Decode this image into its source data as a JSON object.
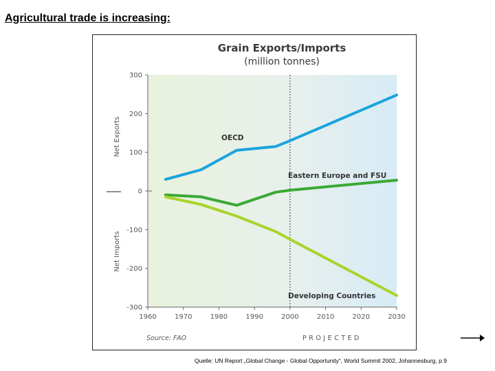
{
  "slide": {
    "title": "Agricultural trade is increasing:",
    "caption": "Quelle: UN Report „Global Change - Global Opportunity“, World Summit 2002, Johannesburg,  p.9"
  },
  "chart_data": {
    "type": "line",
    "title": "Grain Exports/Imports",
    "subtitle": "(million tonnes)",
    "ylabel_top": "Net Exports",
    "ylabel_bottom": "Net Imports",
    "xlim": [
      1960,
      2030
    ],
    "ylim": [
      -300,
      300
    ],
    "x_ticks": [
      "1960",
      "1970",
      "1980",
      "1990",
      "2000",
      "2010",
      "2020",
      "2030"
    ],
    "y_ticks": [
      "300",
      "200",
      "100",
      "0",
      "-100",
      "-200",
      "-300"
    ],
    "projection_start": 2000,
    "source_note": "Source: FAO",
    "projected_label": "PROJECTED",
    "grid": false,
    "series": [
      {
        "name": "OECD",
        "color": "#1aa3dd",
        "points": [
          [
            1965,
            30
          ],
          [
            1975,
            55
          ],
          [
            1985,
            105
          ],
          [
            1996,
            115
          ],
          [
            2000,
            130
          ],
          [
            2030,
            248
          ]
        ]
      },
      {
        "name": "Eastern Europe and FSU",
        "color": "#3aa935",
        "points": [
          [
            1965,
            -10
          ],
          [
            1975,
            -15
          ],
          [
            1985,
            -37
          ],
          [
            1996,
            -3
          ],
          [
            2000,
            2
          ],
          [
            2030,
            28
          ]
        ]
      },
      {
        "name": "Developing Countries",
        "color": "#a8d42a",
        "points": [
          [
            1965,
            -15
          ],
          [
            1975,
            -35
          ],
          [
            1985,
            -65
          ],
          [
            1996,
            -105
          ],
          [
            2000,
            -125
          ],
          [
            2030,
            -270
          ]
        ]
      }
    ]
  }
}
